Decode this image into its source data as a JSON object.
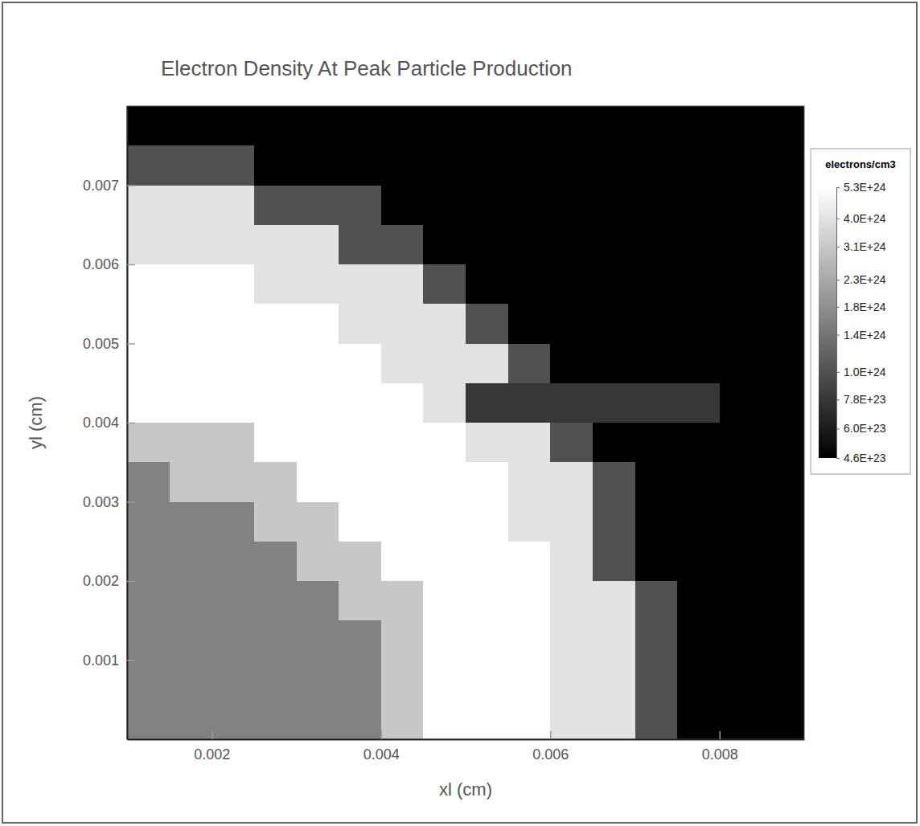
{
  "chart_data": {
    "type": "heatmap",
    "title": "Electron Density At Peak Particle Production",
    "x_label": "xl (cm)",
    "y_label": "yl (cm)",
    "xlim": [
      0.001,
      0.009
    ],
    "xticks": [
      0.002,
      0.004,
      0.006,
      0.008
    ],
    "ylim": [
      0,
      0.008
    ],
    "yticks": [
      0.001,
      0.002,
      0.003,
      0.004,
      0.005,
      0.006,
      0.007
    ],
    "x": [
      0.00125,
      0.00175,
      0.00225,
      0.00275,
      0.00325,
      0.00375,
      0.00425,
      0.00475,
      0.00525,
      0.00575,
      0.00625,
      0.00675,
      0.00725,
      0.00775,
      0.00825,
      0.00875
    ],
    "y": [
      0.00025,
      0.00075,
      0.00125,
      0.00175,
      0.00225,
      0.00275,
      0.00325,
      0.00375,
      0.00425,
      0.00475,
      0.00525,
      0.00575,
      0.00625,
      0.00675,
      0.00725,
      0.00775
    ],
    "z": [
      [
        1.6e+24,
        1.6e+24,
        1.6e+24,
        1.6e+24,
        1.6e+24,
        1.6e+24,
        3.1e+24,
        5.3e+24,
        5.3e+24,
        5.3e+24,
        4e+24,
        4e+24,
        1e+24,
        4.6e+23,
        4.6e+23,
        4.6e+23
      ],
      [
        1.6e+24,
        1.6e+24,
        1.6e+24,
        1.6e+24,
        1.6e+24,
        1.6e+24,
        3.1e+24,
        5.3e+24,
        5.3e+24,
        5.3e+24,
        4e+24,
        4e+24,
        1e+24,
        4.6e+23,
        4.6e+23,
        4.6e+23
      ],
      [
        1.6e+24,
        1.6e+24,
        1.6e+24,
        1.6e+24,
        1.6e+24,
        1.6e+24,
        3.1e+24,
        5.3e+24,
        5.3e+24,
        5.3e+24,
        4e+24,
        4e+24,
        1e+24,
        4.6e+23,
        4.6e+23,
        4.6e+23
      ],
      [
        1.6e+24,
        1.6e+24,
        1.6e+24,
        1.6e+24,
        1.6e+24,
        3.1e+24,
        3.1e+24,
        5.3e+24,
        5.3e+24,
        5.3e+24,
        4e+24,
        4e+24,
        1e+24,
        4.6e+23,
        4.6e+23,
        4.6e+23
      ],
      [
        1.6e+24,
        1.6e+24,
        1.6e+24,
        1.6e+24,
        3.1e+24,
        3.1e+24,
        5.3e+24,
        5.3e+24,
        5.3e+24,
        5.3e+24,
        4e+24,
        1e+24,
        4.6e+23,
        4.6e+23,
        4.6e+23,
        4.6e+23
      ],
      [
        1.6e+24,
        1.6e+24,
        1.6e+24,
        3.1e+24,
        3.1e+24,
        5.3e+24,
        5.3e+24,
        5.3e+24,
        5.3e+24,
        4e+24,
        4e+24,
        1e+24,
        4.6e+23,
        4.6e+23,
        4.6e+23,
        4.6e+23
      ],
      [
        1.6e+24,
        3.1e+24,
        3.1e+24,
        3.1e+24,
        5.3e+24,
        5.3e+24,
        5.3e+24,
        5.3e+24,
        5.3e+24,
        4e+24,
        4e+24,
        1e+24,
        4.6e+23,
        4.6e+23,
        4.6e+23,
        4.6e+23
      ],
      [
        3.1e+24,
        3.1e+24,
        3.1e+24,
        5.3e+24,
        5.3e+24,
        5.3e+24,
        5.3e+24,
        5.3e+24,
        4e+24,
        4e+24,
        1e+24,
        4.6e+23,
        4.6e+23,
        4.6e+23,
        4.6e+23,
        4.6e+23
      ],
      [
        5.3e+24,
        5.3e+24,
        5.3e+24,
        5.3e+24,
        5.3e+24,
        5.3e+24,
        5.3e+24,
        4e+24,
        7.8e+23,
        7.8e+23,
        7.8e+23,
        7.8e+23,
        7.8e+23,
        7.8e+23,
        4.6e+23,
        4.6e+23
      ],
      [
        5.3e+24,
        5.3e+24,
        5.3e+24,
        5.3e+24,
        5.3e+24,
        5.3e+24,
        4e+24,
        4e+24,
        4e+24,
        1e+24,
        4.6e+23,
        4.6e+23,
        4.6e+23,
        4.6e+23,
        4.6e+23,
        4.6e+23
      ],
      [
        5.3e+24,
        5.3e+24,
        5.3e+24,
        5.3e+24,
        5.3e+24,
        4e+24,
        4e+24,
        4e+24,
        1e+24,
        4.6e+23,
        4.6e+23,
        4.6e+23,
        4.6e+23,
        4.6e+23,
        4.6e+23,
        4.6e+23
      ],
      [
        5.3e+24,
        5.3e+24,
        5.3e+24,
        4e+24,
        4e+24,
        4e+24,
        4e+24,
        1e+24,
        4.6e+23,
        4.6e+23,
        4.6e+23,
        4.6e+23,
        4.6e+23,
        4.6e+23,
        4.6e+23,
        4.6e+23
      ],
      [
        4e+24,
        4e+24,
        4e+24,
        4e+24,
        4e+24,
        1e+24,
        1e+24,
        4.6e+23,
        4.6e+23,
        4.6e+23,
        4.6e+23,
        4.6e+23,
        4.6e+23,
        4.6e+23,
        4.6e+23,
        4.6e+23
      ],
      [
        4e+24,
        4e+24,
        4e+24,
        1e+24,
        1e+24,
        1e+24,
        4.6e+23,
        4.6e+23,
        4.6e+23,
        4.6e+23,
        4.6e+23,
        4.6e+23,
        4.6e+23,
        4.6e+23,
        4.6e+23,
        4.6e+23
      ],
      [
        1e+24,
        1e+24,
        1e+24,
        4.6e+23,
        4.6e+23,
        4.6e+23,
        4.6e+23,
        4.6e+23,
        4.6e+23,
        4.6e+23,
        4.6e+23,
        4.6e+23,
        4.6e+23,
        4.6e+23,
        4.6e+23,
        4.6e+23
      ],
      [
        4.6e+23,
        4.6e+23,
        4.6e+23,
        4.6e+23,
        4.6e+23,
        4.6e+23,
        4.6e+23,
        4.6e+23,
        4.6e+23,
        4.6e+23,
        4.6e+23,
        4.6e+23,
        4.6e+23,
        4.6e+23,
        4.6e+23,
        4.6e+23
      ]
    ],
    "colorbar": {
      "title": "electrons/cm3",
      "range": [
        4.6e+23,
        5.3e+24
      ],
      "ticks": [
        {
          "value": 5.3e+24,
          "label": "5.3E+24"
        },
        {
          "value": 4e+24,
          "label": "4.0E+24"
        },
        {
          "value": 3.1e+24,
          "label": "3.1E+24"
        },
        {
          "value": 2.3e+24,
          "label": "2.3E+24"
        },
        {
          "value": 1.8e+24,
          "label": "1.8E+24"
        },
        {
          "value": 1.4e+24,
          "label": "1.4E+24"
        },
        {
          "value": 1e+24,
          "label": "1.0E+24"
        },
        {
          "value": 7.8e+23,
          "label": "7.8E+23"
        },
        {
          "value": 6e+23,
          "label": "6.0E+23"
        },
        {
          "value": 4.6e+23,
          "label": "4.6E+23"
        }
      ]
    }
  }
}
